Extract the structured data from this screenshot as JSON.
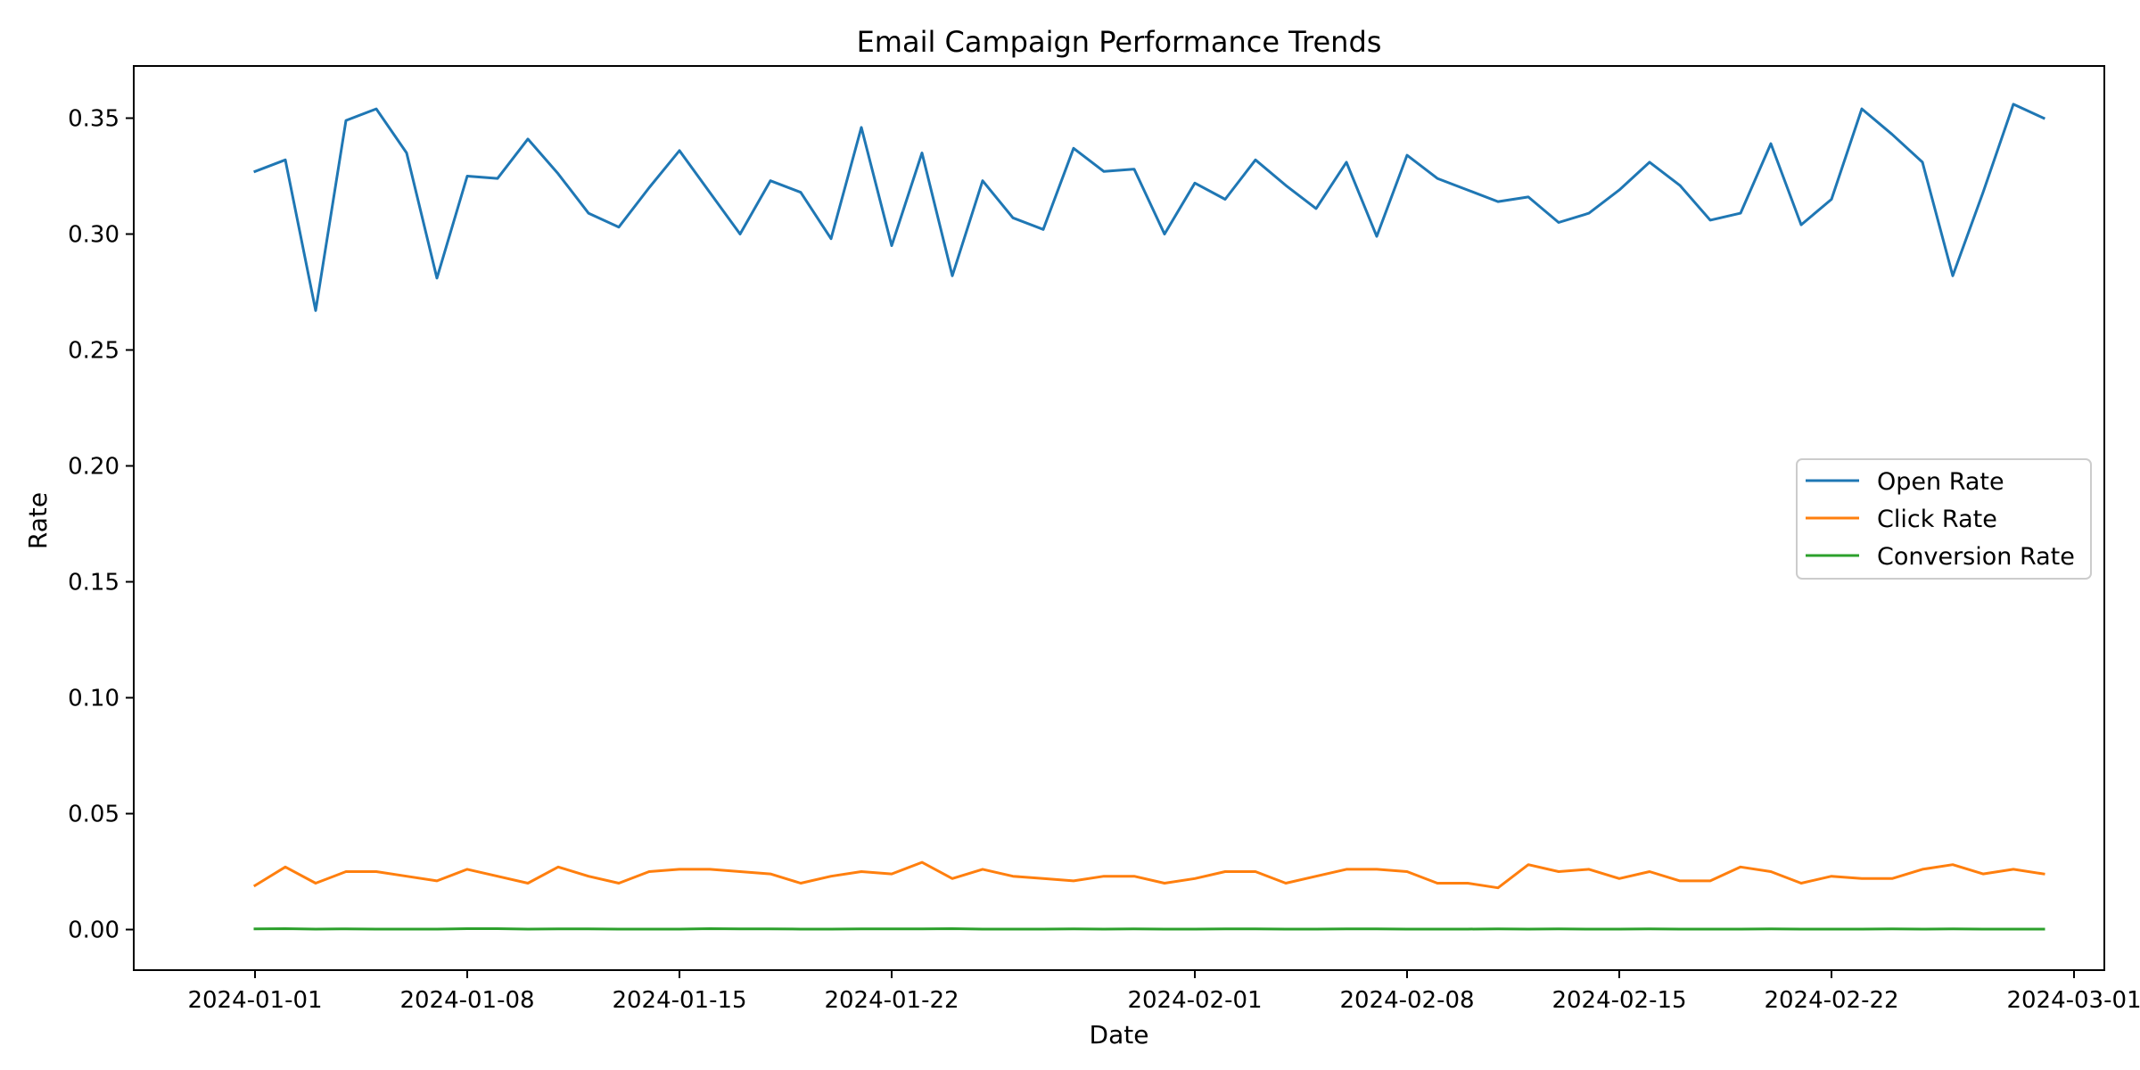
{
  "chart_data": {
    "type": "line",
    "title": "Email Campaign Performance Trends",
    "xlabel": "Date",
    "ylabel": "Rate",
    "grid": false,
    "legend_placement": "center-right",
    "ylim": [
      -0.0175,
      0.3725
    ],
    "xlim": [
      "2023-12-28",
      "2024-03-02"
    ],
    "x_ticks": [
      "2024-01-01",
      "2024-01-08",
      "2024-01-15",
      "2024-01-22",
      "2024-02-01",
      "2024-02-08",
      "2024-02-15",
      "2024-02-22",
      "2024-03-01"
    ],
    "y_ticks": [
      "0.00",
      "0.05",
      "0.10",
      "0.15",
      "0.20",
      "0.25",
      "0.30",
      "0.35"
    ],
    "x": [
      "2024-01-01",
      "2024-01-02",
      "2024-01-03",
      "2024-01-04",
      "2024-01-05",
      "2024-01-06",
      "2024-01-07",
      "2024-01-08",
      "2024-01-09",
      "2024-01-10",
      "2024-01-11",
      "2024-01-12",
      "2024-01-13",
      "2024-01-14",
      "2024-01-15",
      "2024-01-16",
      "2024-01-17",
      "2024-01-18",
      "2024-01-19",
      "2024-01-20",
      "2024-01-21",
      "2024-01-22",
      "2024-01-23",
      "2024-01-24",
      "2024-01-25",
      "2024-01-26",
      "2024-01-27",
      "2024-01-28",
      "2024-01-29",
      "2024-01-30",
      "2024-01-31",
      "2024-02-01",
      "2024-02-02",
      "2024-02-03",
      "2024-02-04",
      "2024-02-05",
      "2024-02-06",
      "2024-02-07",
      "2024-02-08",
      "2024-02-09",
      "2024-02-10",
      "2024-02-11",
      "2024-02-12",
      "2024-02-13",
      "2024-02-14",
      "2024-02-15",
      "2024-02-16",
      "2024-02-17",
      "2024-02-18",
      "2024-02-19",
      "2024-02-20",
      "2024-02-21",
      "2024-02-22",
      "2024-02-23",
      "2024-02-24",
      "2024-02-25",
      "2024-02-26",
      "2024-02-27",
      "2024-02-28",
      "2024-02-29"
    ],
    "series": [
      {
        "name": "Open Rate",
        "color": "#1f77b4",
        "values": [
          0.327,
          0.332,
          0.267,
          0.349,
          0.354,
          0.335,
          0.281,
          0.325,
          0.324,
          0.341,
          0.326,
          0.309,
          0.303,
          0.32,
          0.336,
          0.318,
          0.3,
          0.323,
          0.318,
          0.298,
          0.346,
          0.295,
          0.335,
          0.282,
          0.323,
          0.307,
          0.302,
          0.337,
          0.327,
          0.328,
          0.3,
          0.322,
          0.315,
          0.332,
          0.321,
          0.311,
          0.331,
          0.299,
          0.334,
          0.324,
          0.319,
          0.314,
          0.316,
          0.305,
          0.309,
          0.319,
          0.331,
          0.321,
          0.306,
          0.309,
          0.339,
          0.304,
          0.315,
          0.354,
          0.343,
          0.331,
          0.282,
          0.318,
          0.356,
          0.35
        ]
      },
      {
        "name": "Click Rate",
        "color": "#ff7f0e",
        "values": [
          0.019,
          0.027,
          0.02,
          0.025,
          0.025,
          0.023,
          0.021,
          0.026,
          0.023,
          0.02,
          0.027,
          0.023,
          0.02,
          0.025,
          0.026,
          0.026,
          0.025,
          0.024,
          0.02,
          0.023,
          0.025,
          0.024,
          0.029,
          0.022,
          0.026,
          0.023,
          0.022,
          0.021,
          0.023,
          0.023,
          0.02,
          0.022,
          0.025,
          0.025,
          0.02,
          0.023,
          0.026,
          0.026,
          0.025,
          0.02,
          0.02,
          0.018,
          0.028,
          0.025,
          0.026,
          0.022,
          0.025,
          0.021,
          0.021,
          0.027,
          0.025,
          0.02,
          0.023,
          0.022,
          0.022,
          0.026,
          0.028,
          0.024,
          0.026,
          0.024
        ]
      },
      {
        "name": "Conversion Rate",
        "color": "#2ca02c",
        "values": [
          0.0003,
          0.0004,
          0.0002,
          0.0003,
          0.0002,
          0.0002,
          0.0002,
          0.0004,
          0.0004,
          0.0002,
          0.0003,
          0.0003,
          0.0002,
          0.0002,
          0.0002,
          0.0004,
          0.0003,
          0.0003,
          0.0002,
          0.0002,
          0.0003,
          0.0003,
          0.0003,
          0.0004,
          0.0002,
          0.0002,
          0.0002,
          0.0003,
          0.0002,
          0.0003,
          0.0002,
          0.0002,
          0.0003,
          0.0003,
          0.0002,
          0.0002,
          0.0003,
          0.0003,
          0.0002,
          0.0002,
          0.0002,
          0.0003,
          0.0002,
          0.0003,
          0.0002,
          0.0002,
          0.0003,
          0.0002,
          0.0002,
          0.0002,
          0.0003,
          0.0002,
          0.0002,
          0.0002,
          0.0003,
          0.0002,
          0.0003,
          0.0002,
          0.0002,
          0.0002
        ]
      }
    ]
  }
}
